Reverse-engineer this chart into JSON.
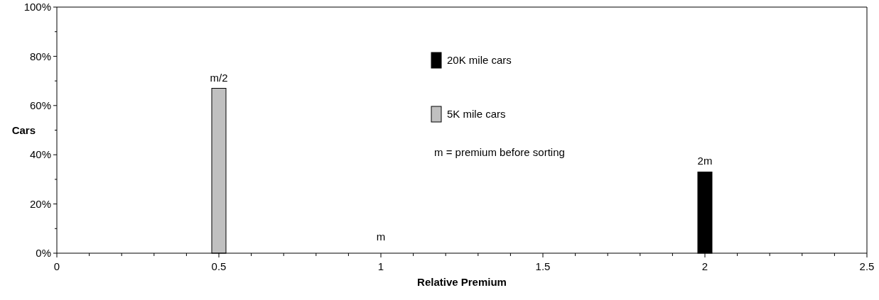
{
  "chart_data": {
    "type": "bar",
    "xlabel": "Relative Premium",
    "ylabel": "Cars",
    "xlim": [
      0,
      2.5
    ],
    "xticks": [
      0,
      {
        "value": 0.1,
        "label": null
      },
      {
        "value": 0.2,
        "label": null
      },
      {
        "value": 0.3,
        "label": null
      },
      {
        "value": 0.4,
        "label": null
      },
      0.5,
      {
        "value": 0.6,
        "label": null
      },
      {
        "value": 0.7,
        "label": null
      },
      {
        "value": 0.8,
        "label": null
      },
      {
        "value": 0.9,
        "label": null
      },
      1,
      {
        "value": 1.1,
        "label": null
      },
      {
        "value": 1.2,
        "label": null
      },
      {
        "value": 1.3,
        "label": null
      },
      {
        "value": 1.4,
        "label": null
      },
      1.5,
      {
        "value": 1.6,
        "label": null
      },
      {
        "value": 1.7,
        "label": null
      },
      {
        "value": 1.8,
        "label": null
      },
      {
        "value": 1.9,
        "label": null
      },
      2,
      {
        "value": 2.1,
        "label": null
      },
      {
        "value": 2.2,
        "label": null
      },
      {
        "value": 2.3,
        "label": null
      },
      {
        "value": 2.4,
        "label": null
      },
      2.5
    ],
    "ylim": [
      0,
      100
    ],
    "yticks": [
      {
        "value": 0,
        "label": "0%"
      },
      {
        "value": 10,
        "label": null
      },
      {
        "value": 20,
        "label": "20%"
      },
      {
        "value": 30,
        "label": null
      },
      {
        "value": 40,
        "label": "40%"
      },
      {
        "value": 50,
        "label": null
      },
      {
        "value": 60,
        "label": "60%"
      },
      {
        "value": 70,
        "label": null
      },
      {
        "value": 80,
        "label": "80%"
      },
      {
        "value": 90,
        "label": null
      },
      {
        "value": 100,
        "label": "100%"
      }
    ],
    "series": [
      {
        "name": "20K mile cars",
        "color": "#000000",
        "x": [
          2
        ],
        "values": [
          33
        ]
      },
      {
        "name": "5K mile cars",
        "color": "#c0c0c0",
        "x": [
          0.5
        ],
        "values": [
          67
        ]
      }
    ],
    "legend": "top",
    "grid": false,
    "annotations": [
      {
        "text": "m/2",
        "x": 0.5,
        "y": 67
      },
      "m",
      {
        "text": "2m",
        "x": 2,
        "y": 33
      },
      "m = premium before sorting"
    ]
  }
}
